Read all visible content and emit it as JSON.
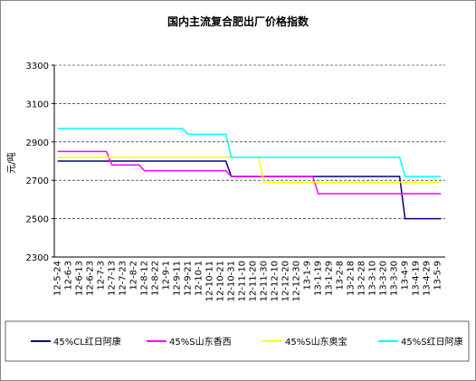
{
  "chart_data": {
    "type": "line",
    "title": "国内主流复合肥出厂价格指数",
    "y_label": "元/吨",
    "categories": [
      "12-5-24",
      "12-6-3",
      "12-6-13",
      "12-6-23",
      "12-7-3",
      "12-7-13",
      "12-7-23",
      "12-8-2",
      "12-8-12",
      "12-8-22",
      "12-9-1",
      "12-9-11",
      "12-9-21",
      "12-10-1",
      "12-10-11",
      "12-10-21",
      "12-10-31",
      "12-11-10",
      "12-11-20",
      "12-11-30",
      "12-12-10",
      "12-12-20",
      "12-12-30",
      "13-1-9",
      "13-1-19",
      "13-1-29",
      "13-2-8",
      "13-2-18",
      "13-2-28",
      "13-3-10",
      "13-3-20",
      "13-3-30",
      "13-4-9",
      "13-4-19",
      "13-4-29",
      "13-5-9"
    ],
    "series": [
      {
        "name": "45%CL红日阿康",
        "color": "#000080",
        "values": [
          2800,
          2800,
          2800,
          2800,
          2800,
          2800,
          2800,
          2800,
          2800,
          2800,
          2800,
          2800,
          2800,
          2800,
          2800,
          2800,
          2720,
          2720,
          2720,
          2720,
          2720,
          2720,
          2720,
          2720,
          2720,
          2720,
          2720,
          2720,
          2720,
          2720,
          2720,
          2720,
          2500,
          2500,
          2500,
          2500
        ]
      },
      {
        "name": "45%S山东香西",
        "color": "#ff00ff",
        "values": [
          2850,
          2850,
          2850,
          2850,
          2850,
          2780,
          2780,
          2780,
          2750,
          2750,
          2750,
          2750,
          2750,
          2750,
          2750,
          2750,
          2720,
          2720,
          2720,
          2720,
          2720,
          2720,
          2720,
          2720,
          2630,
          2630,
          2630,
          2630,
          2630,
          2630,
          2630,
          2630,
          2630,
          2630,
          2630,
          2630
        ]
      },
      {
        "name": "45%S山东奥宝",
        "color": "#ffff00",
        "values": [
          2820,
          2820,
          2820,
          2820,
          2820,
          2820,
          2820,
          2820,
          2820,
          2820,
          2820,
          2820,
          2820,
          2820,
          2820,
          2820,
          2820,
          2820,
          2820,
          2690,
          2690,
          2690,
          2690,
          2690,
          2690,
          2690,
          2690,
          2690,
          2690,
          2690,
          2690,
          2690,
          2690,
          2690,
          2690,
          2690
        ]
      },
      {
        "name": "45%S红日阿康",
        "color": "#00ffff",
        "values": [
          2970,
          2970,
          2970,
          2970,
          2970,
          2970,
          2970,
          2970,
          2970,
          2970,
          2970,
          2970,
          2940,
          2940,
          2940,
          2940,
          2820,
          2820,
          2820,
          2820,
          2820,
          2820,
          2820,
          2820,
          2820,
          2820,
          2820,
          2820,
          2820,
          2820,
          2820,
          2820,
          2720,
          2720,
          2720,
          2720
        ]
      }
    ],
    "ylim": [
      2300,
      3300
    ],
    "yticks": [
      2300,
      2500,
      2700,
      2900,
      3100,
      3300
    ],
    "grid": true
  }
}
